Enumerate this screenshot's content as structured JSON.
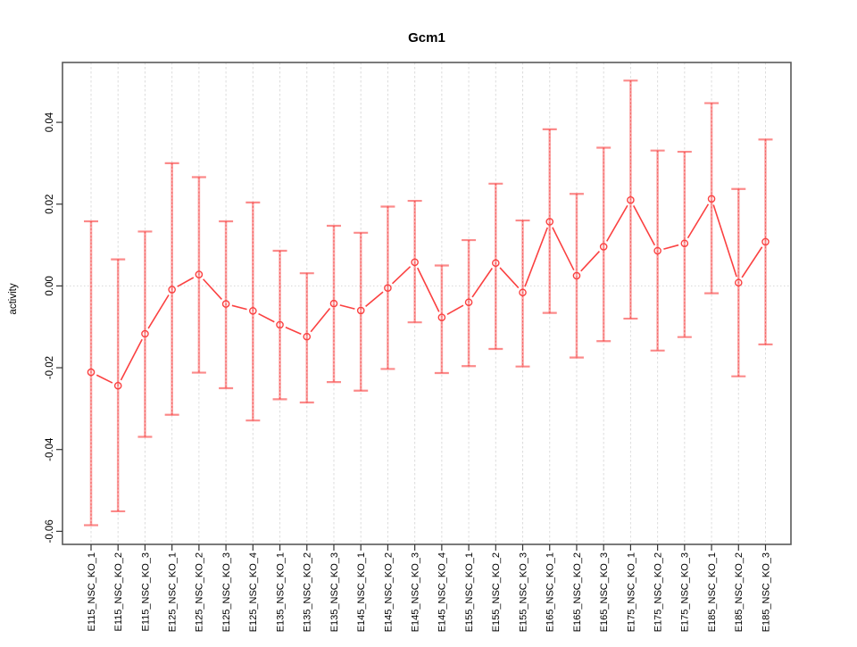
{
  "title": "Gcm1",
  "ylabel": "activity",
  "chart_data": {
    "type": "line",
    "subtype": "points-with-error-bars",
    "title": "Gcm1",
    "xlabel": "",
    "ylabel": "activity",
    "grid": "vertical-dashed-plus-dotted-zero-line",
    "legend": "none",
    "ylim": [
      -0.0632,
      0.0546
    ],
    "yticks": {
      "values": [
        0.04,
        0.02,
        0.0,
        -0.02,
        -0.04,
        -0.06
      ],
      "labels": [
        "0.04",
        "0.02",
        "0.00",
        "-0.02",
        "-0.04",
        "-0.06"
      ]
    },
    "categories": [
      "E115_NSC_KO_1",
      "E115_NSC_KO_2",
      "E115_NSC_KO_3",
      "E125_NSC_KO_1",
      "E125_NSC_KO_2",
      "E125_NSC_KO_3",
      "E125_NSC_KO_4",
      "E135_NSC_KO_1",
      "E135_NSC_KO_2",
      "E135_NSC_KO_3",
      "E145_NSC_KO_1",
      "E145_NSC_KO_2",
      "E145_NSC_KO_3",
      "E145_NSC_KO_4",
      "E155_NSC_KO_1",
      "E155_NSC_KO_2",
      "E155_NSC_KO_3",
      "E165_NSC_KO_1",
      "E165_NSC_KO_2",
      "E165_NSC_KO_3",
      "E175_NSC_KO_1",
      "E175_NSC_KO_2",
      "E175_NSC_KO_3",
      "E185_NSC_KO_1",
      "E185_NSC_KO_2",
      "E185_NSC_KO_3"
    ],
    "series": [
      {
        "name": "activity",
        "values": [
          -0.0211,
          -0.0244,
          -0.0117,
          -0.0009,
          0.0028,
          -0.0044,
          -0.0061,
          -0.0095,
          -0.0124,
          -0.0043,
          -0.006,
          -0.0005,
          0.0058,
          -0.0077,
          -0.004,
          0.0056,
          -0.0016,
          0.0157,
          0.0025,
          0.0096,
          0.021,
          0.0086,
          0.0104,
          0.0213,
          0.0008,
          0.0108
        ],
        "err_high": [
          0.0158,
          0.0065,
          0.0133,
          0.03,
          0.0266,
          0.0158,
          0.0204,
          0.0086,
          0.0031,
          0.0147,
          0.013,
          0.0194,
          0.0208,
          0.005,
          0.0112,
          0.025,
          0.016,
          0.0383,
          0.0225,
          0.0338,
          0.0502,
          0.0331,
          0.0328,
          0.0447,
          0.0237,
          0.0358
        ],
        "err_low": [
          -0.0585,
          -0.0551,
          -0.0369,
          -0.0315,
          -0.0212,
          -0.025,
          -0.0329,
          -0.0277,
          -0.0285,
          -0.0235,
          -0.0256,
          -0.0203,
          -0.0089,
          -0.0213,
          -0.0196,
          -0.0154,
          -0.0197,
          -0.0066,
          -0.0175,
          -0.0135,
          -0.008,
          -0.0158,
          -0.0125,
          -0.0018,
          -0.0221,
          -0.0143
        ]
      }
    ],
    "colors": {
      "point": "#fb4141",
      "line": "#fb4141",
      "error_bar": "#fa4444",
      "error_bar_opacity": 0.45,
      "grid": "#dcdcdc",
      "zero_line": "#d8d8d8",
      "frame": "#595959",
      "tick": "#333333",
      "text": "#000000"
    }
  }
}
